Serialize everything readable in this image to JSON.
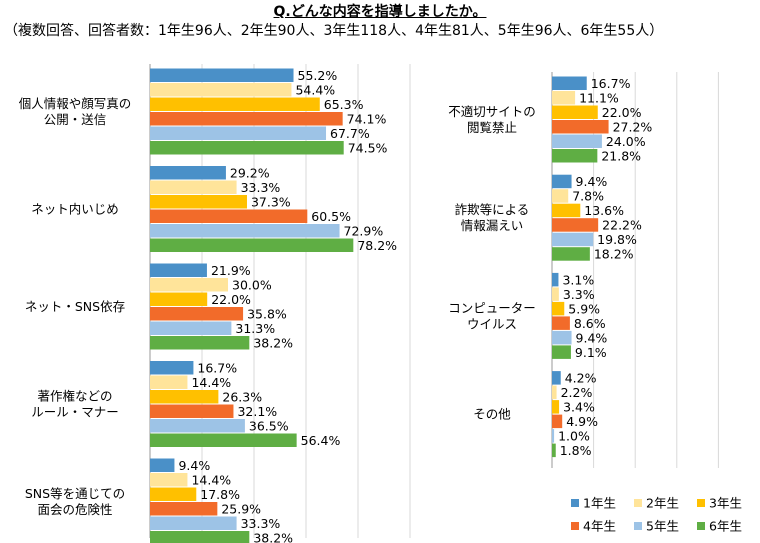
{
  "title": "Q.どんな内容を指導しましたか。",
  "subtitle": "（複数回答、回答者数：1年生96人、2年生90人、3年生118人、4年生81人、5年生96人、6年生55人）",
  "legend_position": "bottom-right",
  "chart_data": {
    "type": "bar",
    "orientation": "horizontal",
    "unit": "%",
    "xlim": [
      0,
      100
    ],
    "grid": true,
    "series": [
      {
        "name": "1年生",
        "color": "#4a90c8"
      },
      {
        "name": "2年生",
        "color": "#ffe49a"
      },
      {
        "name": "3年生",
        "color": "#ffc000"
      },
      {
        "name": "4年生",
        "color": "#f26b2a"
      },
      {
        "name": "5年生",
        "color": "#9dc3e6"
      },
      {
        "name": "6年生",
        "color": "#5fae44"
      }
    ],
    "panels": [
      {
        "categories": [
          {
            "label": [
              "個人情報や顔写真の",
              "公開・送信"
            ],
            "values": [
              55.2,
              54.4,
              65.3,
              74.1,
              67.7,
              74.5
            ]
          },
          {
            "label": [
              "ネット内いじめ"
            ],
            "values": [
              29.2,
              33.3,
              37.3,
              60.5,
              72.9,
              78.2
            ]
          },
          {
            "label": [
              "ネット・SNS依存"
            ],
            "values": [
              21.9,
              30.0,
              22.0,
              35.8,
              31.3,
              38.2
            ]
          },
          {
            "label": [
              "著作権などの",
              "ルール・マナー"
            ],
            "values": [
              16.7,
              14.4,
              26.3,
              32.1,
              36.5,
              56.4
            ]
          },
          {
            "label": [
              "SNS等を通じての",
              "面会の危険性"
            ],
            "values": [
              9.4,
              14.4,
              17.8,
              25.9,
              33.3,
              38.2
            ]
          }
        ]
      },
      {
        "categories": [
          {
            "label": [
              "不適切サイトの",
              "閲覧禁止"
            ],
            "values": [
              16.7,
              11.1,
              22.0,
              27.2,
              24.0,
              21.8
            ]
          },
          {
            "label": [
              "詐欺等による",
              "情報漏えい"
            ],
            "values": [
              9.4,
              7.8,
              13.6,
              22.2,
              19.8,
              18.2
            ]
          },
          {
            "label": [
              "コンピューター",
              "ウイルス"
            ],
            "values": [
              3.1,
              3.3,
              5.9,
              8.6,
              9.4,
              9.1
            ]
          },
          {
            "label": [
              "その他"
            ],
            "values": [
              4.2,
              2.2,
              3.4,
              4.9,
              1.0,
              1.8
            ]
          }
        ]
      }
    ]
  }
}
